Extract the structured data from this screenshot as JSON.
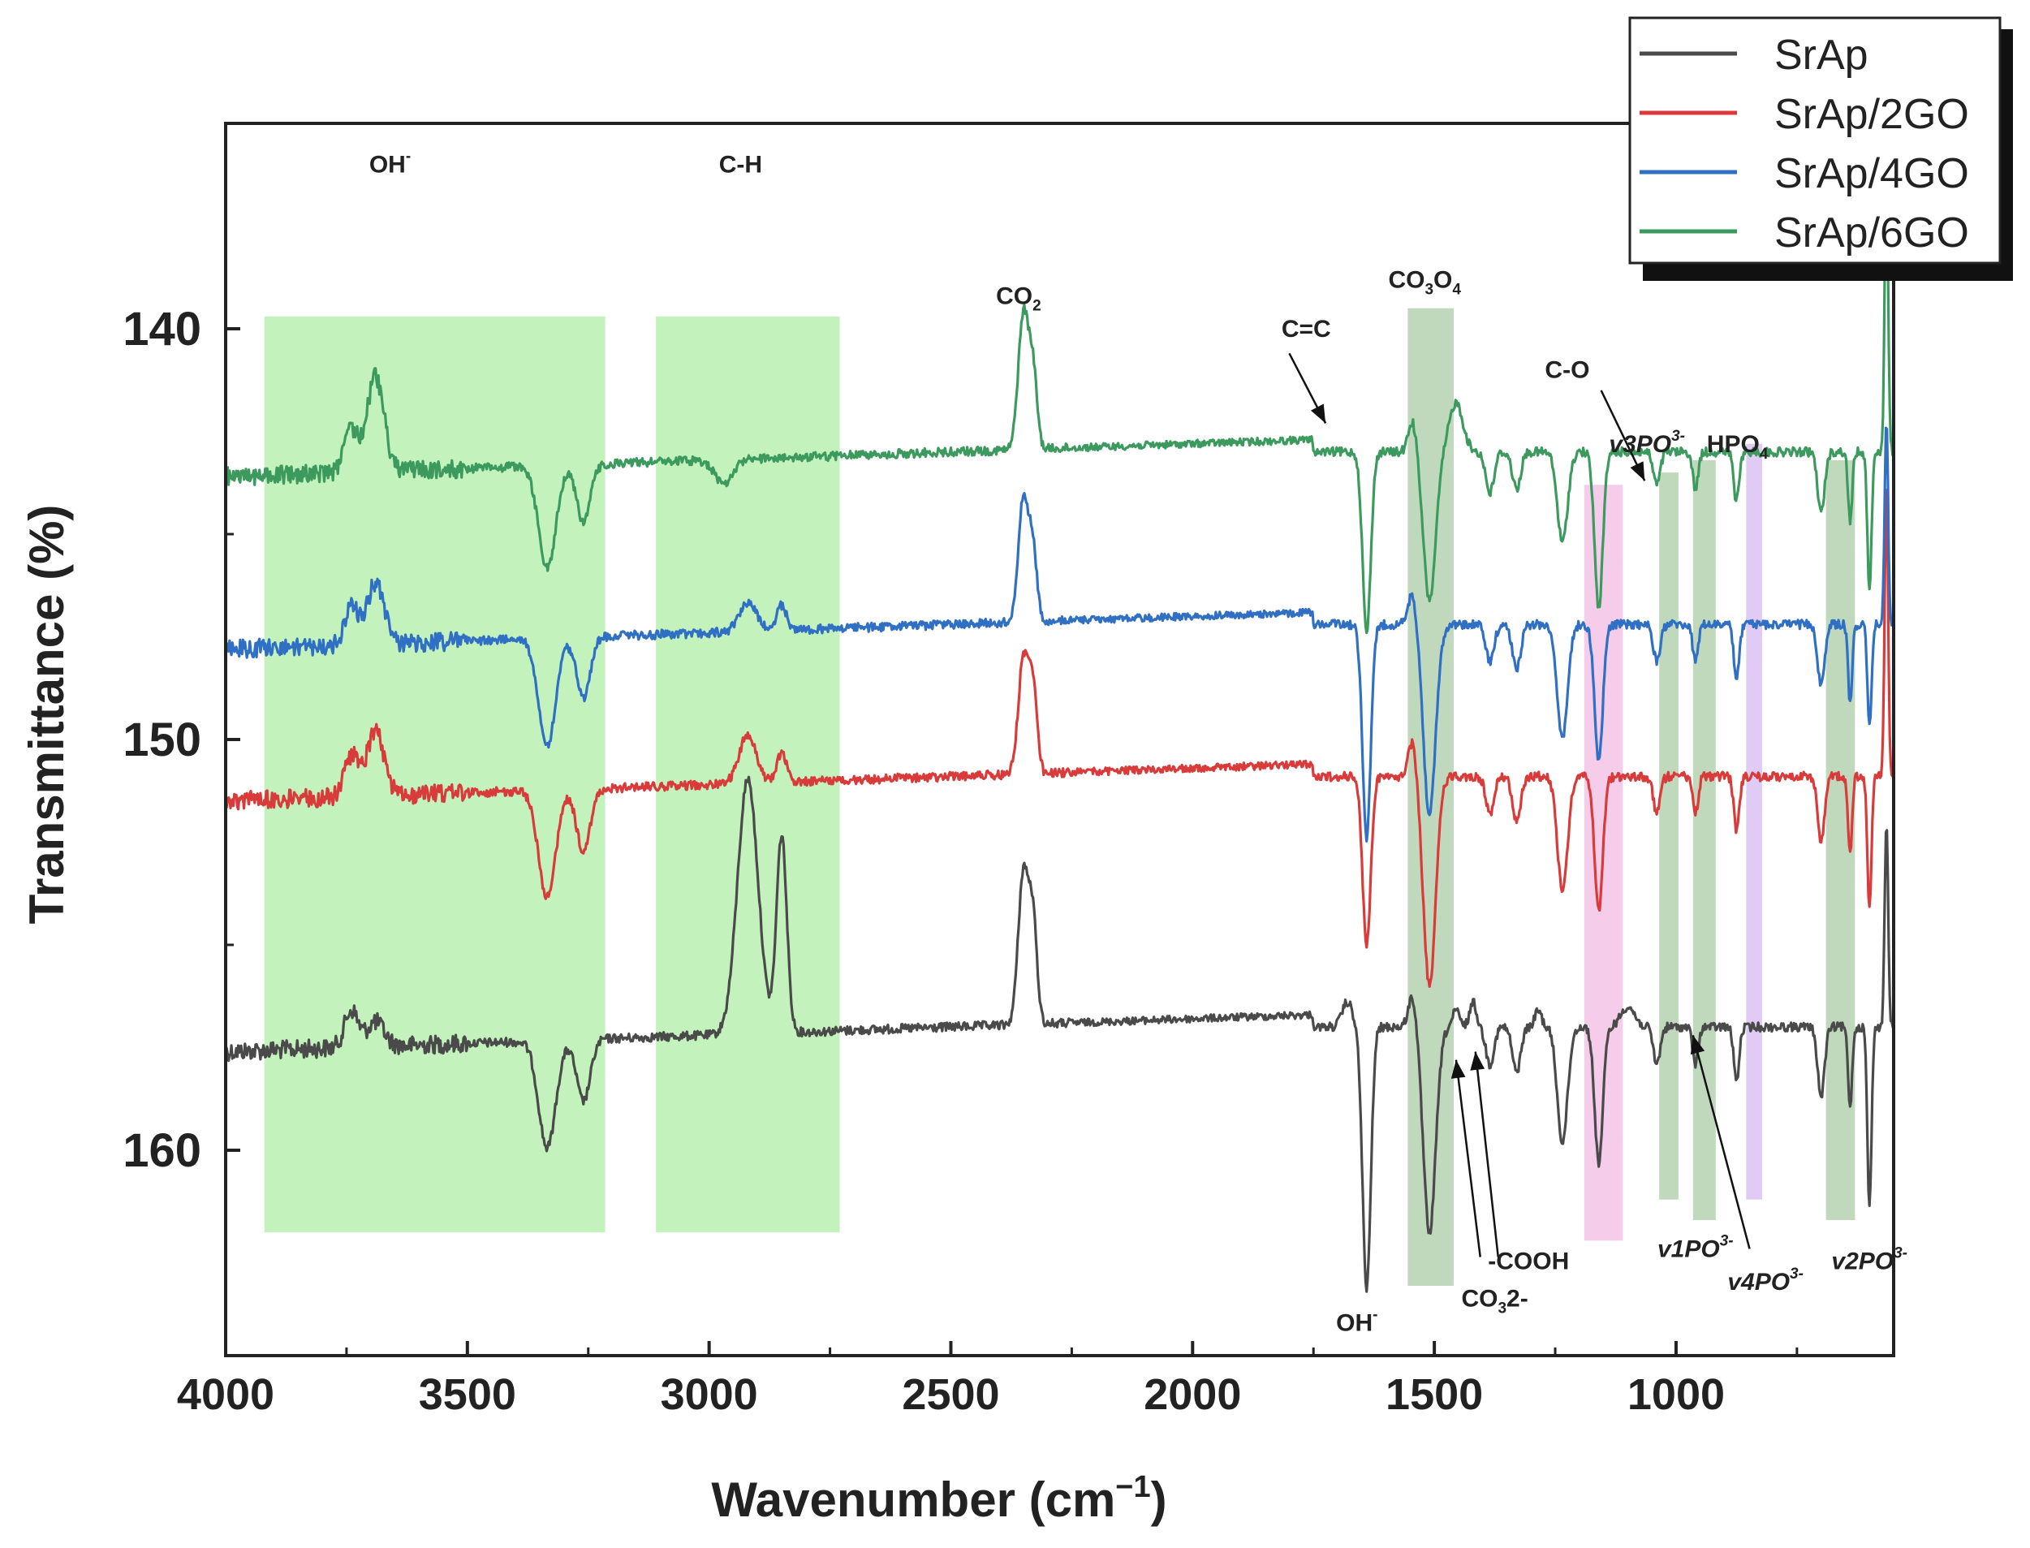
{
  "chart_data": {
    "type": "line",
    "title": "",
    "xlabel": "Wavenumber (cm",
    "xlabel_sup": "−1",
    "xlabel_close": ")",
    "ylabel": "Transmittance (%)",
    "xlim": [
      4000,
      550
    ],
    "ylim": [
      165,
      135
    ],
    "x_ticks": [
      4000,
      3500,
      3000,
      2500,
      2000,
      1500,
      1000
    ],
    "y_ticks": [
      140,
      150,
      160
    ],
    "legend_position": "top-right",
    "colors": {
      "SrAp": "#4a4a4a",
      "SrAp/2GO": "#d93a3a",
      "SrAp/4GO": "#2f6fc4",
      "SrAp/6GO": "#3d9a5e",
      "band_green": "#b8f0b0",
      "band_dark": "#b5d2b2",
      "band_pink": "#f3c3e6",
      "band_violet": "#d9c2f2"
    },
    "series": [
      {
        "name": "SrAp",
        "color": "#4a4a4a",
        "baseline": 157.0,
        "peaks": [
          [
            3740,
            -0.9,
            20
          ],
          [
            3690,
            -0.6,
            25
          ],
          [
            3335,
            2.6,
            25
          ],
          [
            3260,
            1.5,
            20
          ],
          [
            2920,
            -6.2,
            30
          ],
          [
            2850,
            -4.8,
            15
          ],
          [
            2350,
            -3.7,
            15
          ],
          [
            2330,
            -2.4,
            12
          ],
          [
            1680,
            -0.6,
            15
          ],
          [
            1640,
            6.4,
            12
          ],
          [
            1545,
            -0.8,
            12
          ],
          [
            1510,
            5.0,
            18
          ],
          [
            1455,
            -0.4,
            10
          ],
          [
            1420,
            -0.6,
            10
          ],
          [
            1385,
            0.9,
            12
          ],
          [
            1330,
            1.1,
            12
          ],
          [
            1285,
            -0.4,
            10
          ],
          [
            1235,
            2.8,
            15
          ],
          [
            1160,
            3.3,
            12
          ],
          [
            1100,
            -0.5,
            20
          ],
          [
            1040,
            0.9,
            10
          ],
          [
            960,
            0.9,
            8
          ],
          [
            875,
            1.3,
            8
          ],
          [
            700,
            1.7,
            10
          ],
          [
            640,
            1.9,
            6
          ],
          [
            600,
            4.4,
            6
          ],
          [
            565,
            -5.0,
            5
          ]
        ]
      },
      {
        "name": "SrAp/2GO",
        "color": "#d93a3a",
        "baseline": 150.9,
        "peaks": [
          [
            3740,
            -1.0,
            20
          ],
          [
            3690,
            -1.6,
            25
          ],
          [
            3335,
            2.6,
            25
          ],
          [
            3260,
            1.5,
            20
          ],
          [
            2920,
            -1.2,
            25
          ],
          [
            2850,
            -0.7,
            15
          ],
          [
            2350,
            -2.8,
            15
          ],
          [
            2330,
            -2.0,
            12
          ],
          [
            1640,
            4.1,
            12
          ],
          [
            1545,
            -0.9,
            12
          ],
          [
            1510,
            5.1,
            18
          ],
          [
            1385,
            0.9,
            12
          ],
          [
            1330,
            1.1,
            12
          ],
          [
            1235,
            2.8,
            15
          ],
          [
            1160,
            3.3,
            12
          ],
          [
            1040,
            0.9,
            10
          ],
          [
            960,
            0.9,
            8
          ],
          [
            875,
            1.3,
            8
          ],
          [
            700,
            1.6,
            10
          ],
          [
            640,
            1.9,
            6
          ],
          [
            600,
            3.2,
            6
          ],
          [
            565,
            -7.2,
            5
          ]
        ]
      },
      {
        "name": "SrAp/4GO",
        "color": "#2f6fc4",
        "baseline": 147.2,
        "peaks": [
          [
            3740,
            -0.9,
            20
          ],
          [
            3690,
            -1.5,
            25
          ],
          [
            3335,
            2.6,
            25
          ],
          [
            3260,
            1.5,
            20
          ],
          [
            2920,
            -0.7,
            25
          ],
          [
            2850,
            -0.6,
            15
          ],
          [
            2350,
            -3.0,
            15
          ],
          [
            2330,
            -1.6,
            12
          ],
          [
            1640,
            5.2,
            12
          ],
          [
            1545,
            -0.8,
            12
          ],
          [
            1510,
            4.6,
            18
          ],
          [
            1385,
            0.9,
            12
          ],
          [
            1330,
            1.1,
            12
          ],
          [
            1235,
            2.8,
            15
          ],
          [
            1160,
            3.3,
            12
          ],
          [
            1040,
            0.9,
            10
          ],
          [
            960,
            0.9,
            8
          ],
          [
            875,
            1.3,
            8
          ],
          [
            700,
            1.5,
            10
          ],
          [
            640,
            1.9,
            6
          ],
          [
            600,
            2.5,
            6
          ],
          [
            565,
            -5.0,
            5
          ]
        ]
      },
      {
        "name": "SrAp/6GO",
        "color": "#3d9a5e",
        "baseline": 143.0,
        "peaks": [
          [
            3740,
            -1.0,
            20
          ],
          [
            3690,
            -2.3,
            25
          ],
          [
            3335,
            2.5,
            25
          ],
          [
            3260,
            1.4,
            20
          ],
          [
            2970,
            0.6,
            25
          ],
          [
            2350,
            -3.3,
            15
          ],
          [
            2330,
            -1.8,
            12
          ],
          [
            1640,
            4.4,
            12
          ],
          [
            1545,
            -0.8,
            12
          ],
          [
            1510,
            3.6,
            18
          ],
          [
            1455,
            -1.2,
            20
          ],
          [
            1385,
            1.0,
            12
          ],
          [
            1330,
            0.9,
            12
          ],
          [
            1235,
            2.2,
            15
          ],
          [
            1160,
            3.8,
            12
          ],
          [
            1040,
            0.8,
            10
          ],
          [
            960,
            0.9,
            8
          ],
          [
            875,
            1.2,
            8
          ],
          [
            700,
            1.5,
            10
          ],
          [
            640,
            1.7,
            6
          ],
          [
            600,
            3.4,
            6
          ],
          [
            565,
            -7.0,
            5
          ]
        ]
      }
    ],
    "bands": [
      {
        "x1": 3920,
        "x2": 3215,
        "y1": 139.7,
        "y2": 162.0,
        "color": "#b8f0b0"
      },
      {
        "x1": 3110,
        "x2": 2730,
        "y1": 139.7,
        "y2": 162.0,
        "color": "#b8f0b0"
      },
      {
        "x1": 1555,
        "x2": 1460,
        "y1": 139.5,
        "y2": 163.3,
        "color": "#b5d2b2"
      },
      {
        "x1": 1190,
        "x2": 1110,
        "y1": 143.8,
        "y2": 162.2,
        "color": "#f3c3e6"
      },
      {
        "x1": 1035,
        "x2": 995,
        "y1": 143.5,
        "y2": 161.2,
        "color": "#b5d2b2"
      },
      {
        "x1": 965,
        "x2": 918,
        "y1": 143.2,
        "y2": 161.7,
        "color": "#b5d2b2"
      },
      {
        "x1": 855,
        "x2": 822,
        "y1": 142.8,
        "y2": 161.2,
        "color": "#d9c2f2"
      },
      {
        "x1": 690,
        "x2": 630,
        "y1": 143.2,
        "y2": 161.7,
        "color": "#b5d2b2"
      }
    ],
    "annotations": [
      {
        "label": "OH",
        "sup": "-",
        "x": 3660,
        "y": 136.2
      },
      {
        "label": "C-H",
        "x": 2935,
        "y": 136.2
      },
      {
        "label": "CO",
        "sub": "2",
        "x": 2360,
        "y": 139.4
      },
      {
        "label": "C=C",
        "x": 1765,
        "y": 140.2
      },
      {
        "label": "CO",
        "sub": "3",
        "tail": "O",
        "sub2": "4",
        "x": 1520,
        "y": 139.0
      },
      {
        "label": "C-O",
        "x": 1225,
        "y": 141.2
      },
      {
        "label": "v3PO",
        "sup": "3-",
        "x": 1060,
        "y": 143.0
      },
      {
        "label": "HPO",
        "sub": "4",
        "x": 873,
        "y": 143.0
      },
      {
        "label": "OH",
        "sup": "-",
        "x": 1660,
        "y": 164.4
      },
      {
        "label": "CO",
        "sub": "3",
        "tail": "2-",
        "x": 1375,
        "y": 163.8
      },
      {
        "label": "-COOH",
        "x": 1305,
        "y": 162.9
      },
      {
        "label": "v1PO",
        "sup": "3-",
        "x": 960,
        "y": 162.6
      },
      {
        "label": "v4PO",
        "sup": "3-",
        "x": 815,
        "y": 163.4
      },
      {
        "label": "v2PO",
        "sup": "3-",
        "x": 600,
        "y": 162.9
      }
    ],
    "arrows": [
      {
        "from": [
          1800,
          140.6
        ],
        "to": [
          1725,
          142.3
        ]
      },
      {
        "from": [
          1155,
          141.5
        ],
        "to": [
          1065,
          143.7
        ]
      },
      {
        "from": [
          1405,
          162.6
        ],
        "to": [
          1455,
          157.8
        ]
      },
      {
        "from": [
          1368,
          162.6
        ],
        "to": [
          1415,
          157.6
        ]
      },
      {
        "from": [
          848,
          162.4
        ],
        "to": [
          965,
          157.2
        ]
      }
    ]
  },
  "legend": {
    "items": [
      {
        "label": "SrAp",
        "color": "#4a4a4a"
      },
      {
        "label": "SrAp/2GO",
        "color": "#d93a3a"
      },
      {
        "label": "SrAp/4GO",
        "color": "#2f6fc4"
      },
      {
        "label": "SrAp/6GO",
        "color": "#3d9a5e"
      }
    ]
  }
}
